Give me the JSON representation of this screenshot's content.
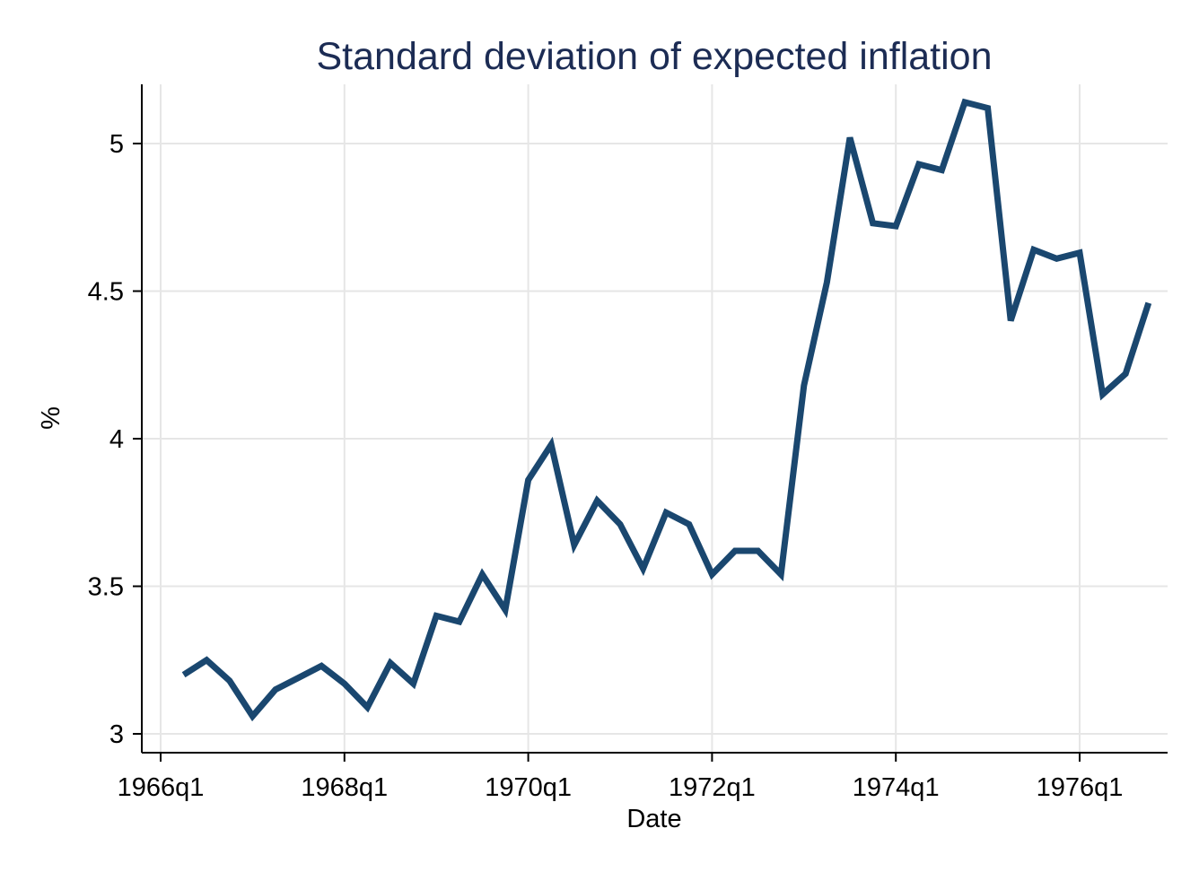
{
  "chart_data": {
    "type": "line",
    "title": "Standard deviation of expected inflation",
    "xlabel": "Date",
    "ylabel": "%",
    "grid": true,
    "legend": "none",
    "color": "#1a476f",
    "ylim": [
      2.96,
      5.2
    ],
    "xlim": [
      "1966q1",
      "1976q4"
    ],
    "yticks": [
      3,
      3.5,
      4,
      4.5,
      5
    ],
    "ytick_labels": [
      "3",
      "3.5",
      "4",
      "4.5",
      "5"
    ],
    "xticks": [
      "1966q1",
      "1968q1",
      "1970q1",
      "1972q1",
      "1974q1",
      "1976q1"
    ],
    "x": [
      "1966q2",
      "1966q3",
      "1966q4",
      "1967q1",
      "1967q2",
      "1967q3",
      "1967q4",
      "1968q1",
      "1968q2",
      "1968q3",
      "1968q4",
      "1969q1",
      "1969q2",
      "1969q3",
      "1969q4",
      "1970q1",
      "1970q2",
      "1970q3",
      "1970q4",
      "1971q1",
      "1971q2",
      "1971q3",
      "1971q4",
      "1972q1",
      "1972q2",
      "1972q3",
      "1972q4",
      "1973q1",
      "1973q2",
      "1973q3",
      "1973q4",
      "1974q1",
      "1974q2",
      "1974q3",
      "1974q4",
      "1975q1",
      "1975q2",
      "1975q3",
      "1975q4",
      "1976q1",
      "1976q2",
      "1976q3",
      "1976q4"
    ],
    "series": [
      {
        "values": [
          3.2,
          3.25,
          3.18,
          3.06,
          3.15,
          3.19,
          3.23,
          3.17,
          3.09,
          3.24,
          3.17,
          3.4,
          3.38,
          3.54,
          3.42,
          3.86,
          3.98,
          3.64,
          3.79,
          3.71,
          3.56,
          3.75,
          3.71,
          3.54,
          3.62,
          3.62,
          3.54,
          4.18,
          4.53,
          5.02,
          4.73,
          4.72,
          4.93,
          4.91,
          5.14,
          5.12,
          4.4,
          4.64,
          4.61,
          4.63,
          4.15,
          4.22,
          4.46
        ]
      }
    ]
  }
}
